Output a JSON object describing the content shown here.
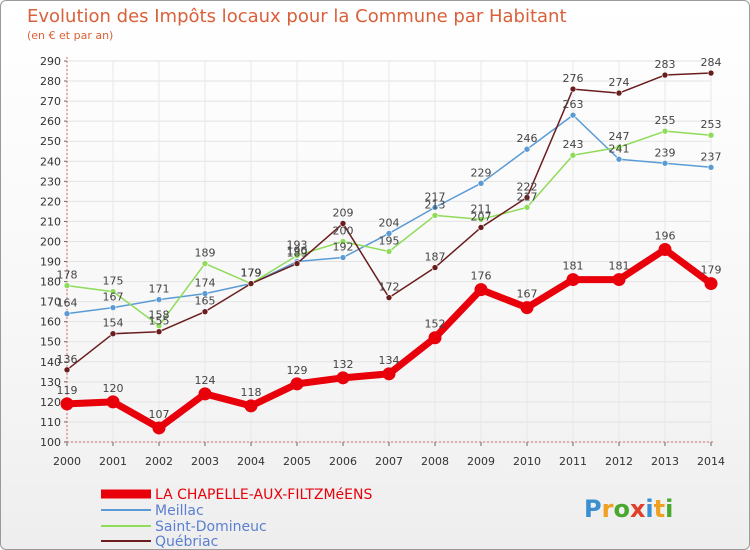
{
  "chart_data": {
    "type": "line",
    "title": "Evolution des Impôts locaux pour la Commune par Habitant",
    "subtitle": "(en € et par an)",
    "xlabel": "",
    "ylabel": "",
    "categories": [
      "2000",
      "2001",
      "2002",
      "2003",
      "2004",
      "2005",
      "2006",
      "2007",
      "2008",
      "2009",
      "2010",
      "2011",
      "2012",
      "2013",
      "2014"
    ],
    "ylim": [
      100,
      290
    ],
    "yticks": [
      100,
      110,
      120,
      130,
      140,
      150,
      160,
      170,
      180,
      190,
      200,
      210,
      220,
      230,
      240,
      250,
      260,
      270,
      280,
      290
    ],
    "grid": true,
    "legend_position": "bottom-left",
    "series": [
      {
        "name": "LA CHAPELLE-AUX-FILTZMéENS",
        "color": "#e8000b",
        "values": [
          119,
          120,
          107,
          124,
          118,
          129,
          132,
          134,
          152,
          176,
          167,
          181,
          181,
          196,
          179
        ]
      },
      {
        "name": "Meillac",
        "color": "#5b9bd5",
        "values": [
          164,
          167,
          171,
          174,
          179,
          190,
          192,
          204,
          217,
          229,
          246,
          263,
          241,
          239,
          237
        ]
      },
      {
        "name": "Saint-Domineuc",
        "color": "#8fdb5a",
        "values": [
          178,
          175,
          158,
          189,
          179,
          193,
          200,
          195,
          213,
          211,
          217,
          243,
          247,
          255,
          253
        ]
      },
      {
        "name": "Québriac",
        "color": "#6b1d1d",
        "values": [
          136,
          154,
          155,
          165,
          179,
          189,
          209,
          172,
          187,
          207,
          222,
          276,
          274,
          283,
          284
        ]
      }
    ]
  },
  "watermark": "Proxiti"
}
